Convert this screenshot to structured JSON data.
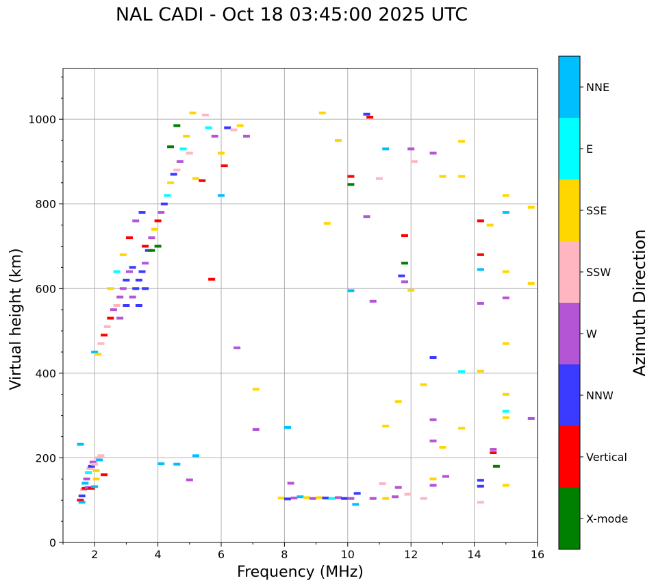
{
  "chart_data": {
    "type": "scatter",
    "title": "NAL CADI - Oct 18 03:45:00 2025 UTC",
    "xlabel": "Frequency (MHz)",
    "ylabel": "Virtual height (km)",
    "xlim": [
      1,
      16
    ],
    "ylim": [
      0,
      1120
    ],
    "xticks": [
      2,
      4,
      6,
      8,
      10,
      12,
      14,
      16
    ],
    "yticks": [
      0,
      200,
      400,
      600,
      800,
      1000
    ],
    "grid": true,
    "colorbar": {
      "label": "Azimuth Direction",
      "categories": [
        {
          "name": "X-mode",
          "color": "#008000"
        },
        {
          "name": "Vertical",
          "color": "#ff0000"
        },
        {
          "name": "NNW",
          "color": "#3b3bff"
        },
        {
          "name": "W",
          "color": "#b455d6"
        },
        {
          "name": "SSW",
          "color": "#ffb6c1"
        },
        {
          "name": "SSE",
          "color": "#ffd700"
        },
        {
          "name": "E",
          "color": "#00ffff"
        },
        {
          "name": "NNE",
          "color": "#00bfff"
        }
      ]
    },
    "series": [
      {
        "name": "low_E_trace",
        "points": [
          [
            1.55,
            100,
            "Vertical"
          ],
          [
            1.6,
            110,
            "NNW"
          ],
          [
            1.65,
            125,
            "SSW"
          ],
          [
            1.7,
            140,
            "NNE"
          ],
          [
            1.75,
            150,
            "W"
          ],
          [
            1.8,
            165,
            "E"
          ],
          [
            1.85,
            175,
            "SSW"
          ],
          [
            1.9,
            180,
            "NNW"
          ],
          [
            1.95,
            190,
            "W"
          ],
          [
            2.0,
            185,
            "SSW"
          ],
          [
            2.05,
            170,
            "SSE"
          ],
          [
            2.1,
            200,
            "SSW"
          ],
          [
            2.15,
            195,
            "NNE"
          ],
          [
            2.2,
            205,
            "SSW"
          ],
          [
            2.3,
            160,
            "Vertical"
          ],
          [
            1.6,
            95,
            "NNE"
          ],
          [
            1.7,
            128,
            "Vertical"
          ],
          [
            1.8,
            130,
            "W"
          ],
          [
            1.9,
            128,
            "Vertical"
          ],
          [
            2.0,
            132,
            "NNE"
          ],
          [
            1.55,
            232,
            "NNE"
          ],
          [
            2.05,
            150,
            "SSE"
          ]
        ]
      },
      {
        "name": "F_trace",
        "points": [
          [
            2.0,
            450,
            "NNE"
          ],
          [
            2.1,
            445,
            "SSE"
          ],
          [
            2.2,
            470,
            "SSW"
          ],
          [
            2.3,
            490,
            "Vertical"
          ],
          [
            2.4,
            510,
            "SSW"
          ],
          [
            2.5,
            530,
            "Vertical"
          ],
          [
            2.6,
            550,
            "W"
          ],
          [
            2.7,
            560,
            "SSW"
          ],
          [
            2.8,
            580,
            "W"
          ],
          [
            2.9,
            600,
            "W"
          ],
          [
            3.0,
            620,
            "NNW"
          ],
          [
            3.1,
            640,
            "W"
          ],
          [
            3.2,
            650,
            "NNW"
          ],
          [
            3.3,
            600,
            "NNW"
          ],
          [
            3.4,
            620,
            "NNW"
          ],
          [
            3.5,
            640,
            "NNW"
          ],
          [
            3.6,
            660,
            "W"
          ],
          [
            3.7,
            690,
            "NNW"
          ],
          [
            3.8,
            720,
            "W"
          ],
          [
            3.9,
            740,
            "SSE"
          ],
          [
            4.0,
            760,
            "Vertical"
          ],
          [
            4.1,
            780,
            "W"
          ],
          [
            4.2,
            800,
            "NNW"
          ],
          [
            4.3,
            820,
            "E"
          ],
          [
            4.4,
            850,
            "SSE"
          ],
          [
            4.5,
            870,
            "NNW"
          ],
          [
            4.6,
            880,
            "SSW"
          ],
          [
            4.7,
            900,
            "W"
          ],
          [
            4.8,
            930,
            "E"
          ],
          [
            4.9,
            960,
            "SSE"
          ],
          [
            2.5,
            600,
            "SSE"
          ],
          [
            2.7,
            640,
            "E"
          ],
          [
            2.9,
            680,
            "SSE"
          ],
          [
            3.1,
            720,
            "Vertical"
          ],
          [
            3.3,
            760,
            "W"
          ],
          [
            3.5,
            780,
            "NNW"
          ],
          [
            3.6,
            700,
            "Vertical"
          ],
          [
            3.8,
            690,
            "X-mode"
          ],
          [
            4.0,
            700,
            "X-mode"
          ],
          [
            4.4,
            935,
            "X-mode"
          ],
          [
            2.8,
            530,
            "W"
          ],
          [
            3.0,
            560,
            "NNW"
          ],
          [
            3.2,
            580,
            "W"
          ],
          [
            3.4,
            560,
            "NNW"
          ],
          [
            3.6,
            600,
            "NNW"
          ],
          [
            5.0,
            920,
            "SSW"
          ],
          [
            5.2,
            860,
            "SSE"
          ],
          [
            5.4,
            855,
            "Vertical"
          ],
          [
            5.6,
            980,
            "E"
          ],
          [
            5.8,
            960,
            "W"
          ],
          [
            6.0,
            920,
            "SSE"
          ],
          [
            6.1,
            890,
            "Vertical"
          ],
          [
            6.2,
            980,
            "NNW"
          ],
          [
            6.4,
            975,
            "SSW"
          ],
          [
            6.6,
            985,
            "SSE"
          ],
          [
            6.8,
            960,
            "W"
          ],
          [
            5.1,
            1015,
            "SSE"
          ],
          [
            5.5,
            1010,
            "SSW"
          ],
          [
            4.6,
            985,
            "X-mode"
          ],
          [
            6.0,
            820,
            "NNE"
          ]
        ]
      },
      {
        "name": "sporadic_low",
        "points": [
          [
            7.9,
            105,
            "SSE"
          ],
          [
            8.1,
            103,
            "NNW"
          ],
          [
            8.3,
            105,
            "W"
          ],
          [
            8.5,
            108,
            "NNE"
          ],
          [
            8.7,
            106,
            "SSE"
          ],
          [
            8.9,
            104,
            "W"
          ],
          [
            9.1,
            106,
            "SSE"
          ],
          [
            9.3,
            105,
            "NNW"
          ],
          [
            9.5,
            104,
            "E"
          ],
          [
            9.7,
            106,
            "W"
          ],
          [
            9.9,
            104,
            "NNW"
          ],
          [
            10.1,
            104,
            "W"
          ],
          [
            10.3,
            116,
            "NNW"
          ],
          [
            10.8,
            104,
            "W"
          ],
          [
            11.2,
            104,
            "SSE"
          ],
          [
            11.5,
            108,
            "W"
          ],
          [
            11.9,
            114,
            "SSW"
          ],
          [
            12.4,
            104,
            "SSW"
          ],
          [
            12.7,
            135,
            "W"
          ],
          [
            13.1,
            156,
            "W"
          ],
          [
            14.2,
            95,
            "SSW"
          ],
          [
            14.2,
            133,
            "NNW"
          ],
          [
            14.7,
            180,
            "X-mode"
          ],
          [
            15.0,
            135,
            "SSE"
          ],
          [
            10.25,
            90,
            "NNE"
          ],
          [
            8.2,
            140,
            "W"
          ],
          [
            11.1,
            139,
            "SSW"
          ],
          [
            11.6,
            130,
            "W"
          ],
          [
            12.7,
            150,
            "SSE"
          ],
          [
            14.2,
            147,
            "NNW"
          ]
        ]
      },
      {
        "name": "scatter_high",
        "points": [
          [
            10.1,
            865,
            "Vertical"
          ],
          [
            10.1,
            846,
            "X-mode"
          ],
          [
            9.35,
            754,
            "SSE"
          ],
          [
            10.7,
            1005,
            "Vertical"
          ],
          [
            10.6,
            1012,
            "NNW"
          ],
          [
            11.8,
            660,
            "X-mode"
          ],
          [
            11.8,
            725,
            "Vertical"
          ],
          [
            11.7,
            630,
            "NNW"
          ],
          [
            11.8,
            616,
            "W"
          ],
          [
            12.0,
            596,
            "SSE"
          ],
          [
            12.7,
            920,
            "W"
          ],
          [
            13.0,
            865,
            "SSE"
          ],
          [
            13.6,
            948,
            "SSE"
          ],
          [
            13.6,
            865,
            "SSE"
          ],
          [
            14.2,
            760,
            "Vertical"
          ],
          [
            14.2,
            680,
            "Vertical"
          ],
          [
            14.2,
            645,
            "NNE"
          ],
          [
            14.2,
            565,
            "W"
          ],
          [
            14.5,
            750,
            "SSE"
          ],
          [
            15.0,
            820,
            "SSE"
          ],
          [
            15.0,
            780,
            "NNE"
          ],
          [
            15.0,
            640,
            "SSE"
          ],
          [
            15.0,
            578,
            "W"
          ],
          [
            15.0,
            470,
            "SSE"
          ],
          [
            15.0,
            350,
            "SSE"
          ],
          [
            15.0,
            310,
            "E"
          ],
          [
            15.0,
            295,
            "SSE"
          ],
          [
            15.8,
            792,
            "SSE"
          ],
          [
            15.8,
            612,
            "SSE"
          ],
          [
            15.8,
            293,
            "W"
          ],
          [
            14.6,
            220,
            "W"
          ],
          [
            14.6,
            212,
            "Vertical"
          ],
          [
            13.6,
            270,
            "SSE"
          ],
          [
            12.7,
            290,
            "W"
          ],
          [
            12.7,
            240,
            "W"
          ],
          [
            13.0,
            225,
            "SSE"
          ],
          [
            12.4,
            373,
            "SSE"
          ],
          [
            12.7,
            437,
            "NNW"
          ],
          [
            13.6,
            404,
            "E"
          ],
          [
            14.2,
            405,
            "SSE"
          ],
          [
            11.6,
            333,
            "SSE"
          ],
          [
            11.2,
            275,
            "SSE"
          ],
          [
            10.1,
            595,
            "NNE"
          ],
          [
            10.6,
            770,
            "W"
          ],
          [
            11.0,
            860,
            "SSW"
          ],
          [
            10.8,
            570,
            "W"
          ],
          [
            12.1,
            900,
            "SSW"
          ],
          [
            12.0,
            930,
            "W"
          ],
          [
            11.2,
            930,
            "NNE"
          ],
          [
            9.7,
            950,
            "SSE"
          ],
          [
            9.2,
            1015,
            "SSE"
          ],
          [
            6.5,
            460,
            "W"
          ],
          [
            5.7,
            622,
            "Vertical"
          ],
          [
            5.2,
            205,
            "NNE"
          ],
          [
            5.0,
            148,
            "W"
          ],
          [
            4.1,
            186,
            "NNE"
          ],
          [
            4.6,
            185,
            "NNE"
          ],
          [
            8.1,
            272,
            "NNE"
          ],
          [
            7.1,
            362,
            "SSE"
          ],
          [
            7.1,
            267,
            "W"
          ]
        ]
      }
    ]
  }
}
